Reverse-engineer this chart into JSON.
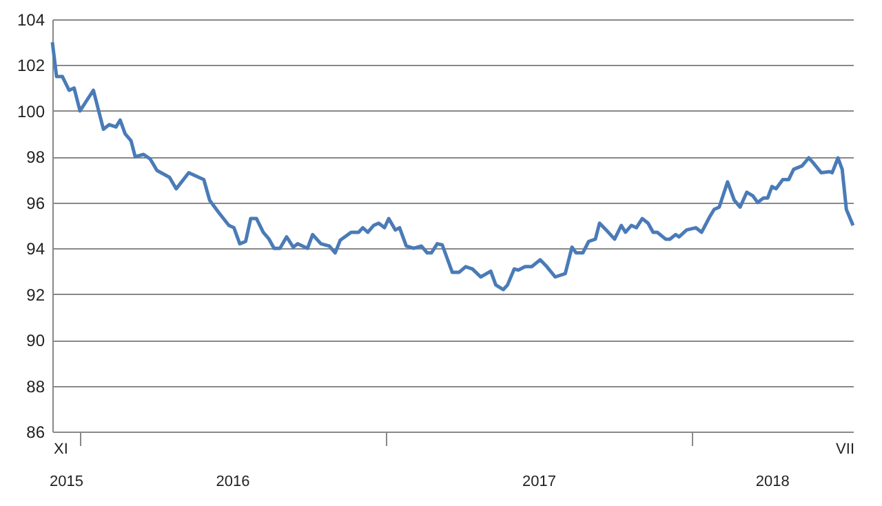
{
  "chart_data": {
    "type": "line",
    "x": [
      "2015-11-29",
      "2015-12-04",
      "2015-12-11",
      "2015-12-19",
      "2015-12-25",
      "2016-01-01",
      "2016-01-17",
      "2016-01-29",
      "2016-02-05",
      "2016-02-13",
      "2016-02-18",
      "2016-02-24",
      "2016-03-02",
      "2016-03-07",
      "2016-03-17",
      "2016-03-25",
      "2016-04-02",
      "2016-04-17",
      "2016-04-25",
      "2016-05-10",
      "2016-05-28",
      "2016-06-04",
      "2016-06-14",
      "2016-06-27",
      "2016-07-03",
      "2016-07-10",
      "2016-07-17",
      "2016-07-23",
      "2016-07-30",
      "2016-08-07",
      "2016-08-14",
      "2016-08-20",
      "2016-08-27",
      "2016-09-04",
      "2016-09-12",
      "2016-09-17",
      "2016-09-29",
      "2016-10-05",
      "2016-10-15",
      "2016-10-25",
      "2016-11-01",
      "2016-11-07",
      "2016-11-20",
      "2016-11-29",
      "2016-12-04",
      "2016-12-10",
      "2016-12-17",
      "2016-12-23",
      "2016-12-30",
      "2017-01-04",
      "2017-01-12",
      "2017-01-17",
      "2017-01-25",
      "2017-02-03",
      "2017-02-12",
      "2017-02-19",
      "2017-02-24",
      "2017-03-03",
      "2017-03-09",
      "2017-03-21",
      "2017-03-29",
      "2017-04-06",
      "2017-04-14",
      "2017-04-24",
      "2017-05-06",
      "2017-05-12",
      "2017-05-21",
      "2017-05-26",
      "2017-06-03",
      "2017-06-08",
      "2017-06-16",
      "2017-06-24",
      "2017-07-04",
      "2017-07-12",
      "2017-07-22",
      "2017-08-03",
      "2017-08-11",
      "2017-08-16",
      "2017-08-24",
      "2017-08-31",
      "2017-09-08",
      "2017-09-13",
      "2017-09-21",
      "2017-10-01",
      "2017-10-09",
      "2017-10-14",
      "2017-10-21",
      "2017-10-27",
      "2017-11-03",
      "2017-11-10",
      "2017-11-16",
      "2017-11-21",
      "2017-12-01",
      "2017-12-06",
      "2017-12-13",
      "2017-12-17",
      "2017-12-26",
      "2018-01-06",
      "2018-01-13",
      "2018-01-23",
      "2018-01-28",
      "2018-02-03",
      "2018-02-13",
      "2018-02-21",
      "2018-02-28",
      "2018-03-08",
      "2018-03-15",
      "2018-03-21",
      "2018-03-28",
      "2018-04-02",
      "2018-04-07",
      "2018-04-12",
      "2018-04-20",
      "2018-04-27",
      "2018-05-03",
      "2018-05-13",
      "2018-05-21",
      "2018-05-26",
      "2018-06-05",
      "2018-06-15",
      "2018-06-18",
      "2018-06-25",
      "2018-06-30",
      "2018-07-05",
      "2018-07-13"
    ],
    "series": [
      {
        "color": "#4a7bb7",
        "values": [
          103.0,
          101.5,
          101.5,
          100.9,
          101.0,
          100.0,
          100.9,
          99.2,
          99.4,
          99.3,
          99.6,
          99.0,
          98.7,
          98.0,
          98.1,
          97.9,
          97.4,
          97.1,
          96.6,
          97.3,
          97.0,
          96.1,
          95.6,
          95.0,
          94.9,
          94.2,
          94.3,
          95.3,
          95.3,
          94.7,
          94.4,
          94.0,
          94.0,
          94.5,
          94.05,
          94.2,
          94.0,
          94.6,
          94.2,
          94.1,
          93.8,
          94.35,
          94.7,
          94.7,
          94.9,
          94.7,
          95.0,
          95.1,
          94.9,
          95.3,
          94.8,
          94.9,
          94.1,
          94.0,
          94.1,
          93.8,
          93.8,
          94.2,
          94.15,
          92.95,
          92.95,
          93.2,
          93.1,
          92.75,
          93.0,
          92.4,
          92.2,
          92.4,
          93.1,
          93.05,
          93.2,
          93.2,
          93.5,
          93.2,
          92.75,
          92.9,
          94.05,
          93.8,
          93.8,
          94.3,
          94.4,
          95.1,
          94.8,
          94.4,
          95.0,
          94.7,
          95.0,
          94.9,
          95.3,
          95.1,
          94.7,
          94.7,
          94.4,
          94.4,
          94.6,
          94.5,
          94.8,
          94.9,
          94.7,
          95.4,
          95.7,
          95.8,
          96.9,
          96.1,
          95.8,
          96.45,
          96.3,
          96.0,
          96.2,
          96.2,
          96.7,
          96.6,
          97.0,
          97.0,
          97.45,
          97.6,
          97.95,
          97.75,
          97.3,
          97.35,
          97.3,
          97.95,
          97.45,
          95.7,
          95.0
        ]
      }
    ],
    "xlim": [
      "2015-11-29",
      "2018-07-13"
    ],
    "xticks": [
      {
        "value": "2015-12-15",
        "label": "2015"
      },
      {
        "value": "2016-01-01",
        "label": null
      },
      {
        "value": "2016-07-01",
        "label": "2016"
      },
      {
        "value": "2017-01-01",
        "label": null
      },
      {
        "value": "2017-07-02",
        "label": "2017"
      },
      {
        "value": "2018-01-01",
        "label": null
      },
      {
        "value": "2018-04-07",
        "label": "2018"
      }
    ],
    "annotations": [
      "XI",
      "VII"
    ],
    "ylim": [
      86,
      104
    ],
    "yticks": [
      86,
      88,
      90,
      92,
      94,
      96,
      98,
      100,
      102,
      104
    ],
    "grid": "y",
    "line_style": "solid",
    "marker": "none"
  }
}
